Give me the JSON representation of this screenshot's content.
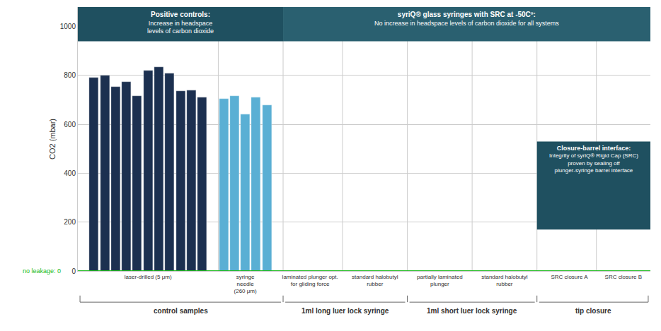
{
  "chart_data": {
    "type": "bar",
    "categories": [
      null,
      null,
      null,
      null,
      null,
      "laser-drilled (5 μm)",
      null,
      null,
      null,
      null,
      null,
      null,
      null,
      "syringe\nneedle\n(260 μm)",
      null,
      null,
      "laminated plunger opt.\nfor gliding force",
      "standard halobutyl\nrubber",
      "partially laminated\nplunger",
      "standard halobutyl\nrubber",
      "SRC closure A",
      "SRC closure B"
    ],
    "values": [
      790,
      800,
      755,
      775,
      715,
      820,
      835,
      810,
      735,
      740,
      710,
      705,
      715,
      640,
      710,
      680,
      0,
      0,
      0,
      0,
      0,
      0
    ],
    "colors": [
      "#1c3050",
      "#1c3050",
      "#1c3050",
      "#1c3050",
      "#1c3050",
      "#1c3050",
      "#1c3050",
      "#1c3050",
      "#1c3050",
      "#1c3050",
      "#1c3050",
      "#5aafd4",
      "#5aafd4",
      "#5aafd4",
      "#5aafd4",
      "#5aafd4",
      "#5aafd4",
      "#5aafd4",
      "#5aafd4",
      "#5aafd4",
      "#5aafd4",
      "#5aafd4"
    ],
    "ylabel": "CO2 (mbar)",
    "ylim": [
      0,
      1080
    ],
    "yticks": [
      0,
      200,
      400,
      600,
      800,
      1000
    ],
    "grid": true,
    "annotations": [
      {
        "text": "no leakage: 0",
        "color": "#22bb22"
      },
      {
        "text": "control samples"
      },
      {
        "text": "1ml long luer lock syringe"
      },
      {
        "text": "1ml short luer lock syringe"
      },
      {
        "text": "tip closure"
      },
      {
        "title": "Positive controls:",
        "text": "Increase in headspace\nlevels of carbon dioxide",
        "color": "#1f5060"
      },
      {
        "title": "syriQ® glass syringes with SRC at -50Cº:",
        "text": "No increase in headspace levels of carbon dioxide for all systems",
        "color": "#2a6070"
      },
      {
        "title": "Closure-barrel interface:",
        "text": "Integrity of syriQ® Rigid Cap (SRC)\nproven by sealing off\nplunger-syringe barrel interface",
        "color": "#1f5060"
      }
    ]
  }
}
